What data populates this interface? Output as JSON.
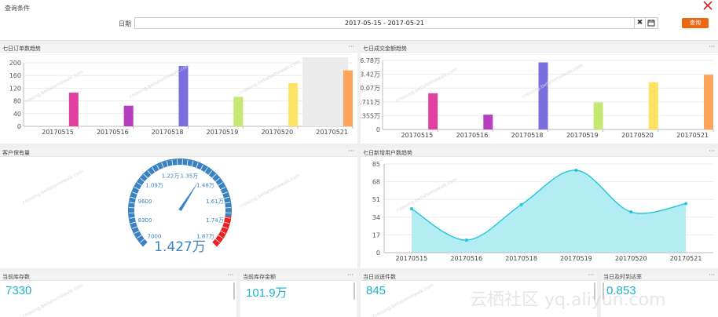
{
  "filter": {
    "title": "查询条件",
    "date_label": "日期",
    "date_value": "2017-05-15 - 2017-05-21",
    "query_label": "查询"
  },
  "watermark": {
    "text": "云栖社区 yq.aliyun.com",
    "panel_text": "crossing.bellahomewalk.com"
  },
  "panels": {
    "orders": {
      "title": "七日订单数趋势",
      "menu": "···"
    },
    "amount": {
      "title": "七日成交金额趋势",
      "menu": "···"
    },
    "gauge": {
      "title": "客户保有量",
      "menu": "···"
    },
    "newusers": {
      "title": "七日新增用户数趋势",
      "menu": "···"
    },
    "stock_count": {
      "title": "当前库存数",
      "menu": "···",
      "value": "7330"
    },
    "stock_amount": {
      "title": "当前库存金额",
      "menu": "···",
      "value": "101.9万"
    },
    "dispatch": {
      "title": "当日派送件数",
      "menu": "···",
      "value": "845"
    },
    "ontime": {
      "title": "当日及时到达率",
      "menu": "···",
      "value": "0.853"
    }
  },
  "chart_data": [
    {
      "type": "bar",
      "categories": [
        "20170515",
        "20170516",
        "20170518",
        "20170519",
        "20170520",
        "20170521"
      ],
      "values": [
        106,
        65,
        190,
        93,
        136,
        176
      ],
      "colors": [
        "#e040a0",
        "#b83ec0",
        "#7b6fe0",
        "#c6e873",
        "#fce364",
        "#fca55a"
      ],
      "yticks": [
        "0",
        "40",
        "80",
        "120",
        "160",
        "200"
      ],
      "ylim": [
        0,
        200
      ],
      "highlight_category": "20170521",
      "highlight_color": "#ececec"
    },
    {
      "type": "bar",
      "categories": [
        "20170515",
        "20170516",
        "20170518",
        "20170519",
        "20170520",
        "20170521"
      ],
      "values": [
        8.8,
        3.6,
        16.3,
        6.6,
        11.5,
        13.3
      ],
      "colors": [
        "#e040a0",
        "#b83ec0",
        "#7b6fe0",
        "#c6e873",
        "#fce364",
        "#fca55a"
      ],
      "yticks": [
        "0",
        "3.355万",
        "6.711万",
        "10.07万",
        "13.42万",
        "16.78万"
      ],
      "ylim": [
        0,
        16.78
      ]
    },
    {
      "type": "gauge",
      "min": 0.7,
      "max": 1.87,
      "value": 1.427,
      "value_label": "1.427万",
      "tick_labels": [
        "7000",
        "8300",
        "9600",
        "1.09万",
        "1.22万",
        "1.35万",
        "1.48万",
        "1.61万",
        "1.74万",
        "1.87万"
      ],
      "ring_color": "#3c82c0",
      "danger_color": "#ee1f1f",
      "label_color": "#3c82c0"
    },
    {
      "type": "area",
      "categories": [
        "20170515",
        "20170516",
        "20170518",
        "20170519",
        "20170520",
        "20170521"
      ],
      "values": [
        42,
        12,
        46,
        79,
        39,
        47
      ],
      "yticks": [
        "0",
        "17",
        "34",
        "51",
        "68",
        "85"
      ],
      "ylim": [
        0,
        85
      ],
      "line_color": "#1fc6dc",
      "fill_color": "#b4ecf4"
    }
  ]
}
